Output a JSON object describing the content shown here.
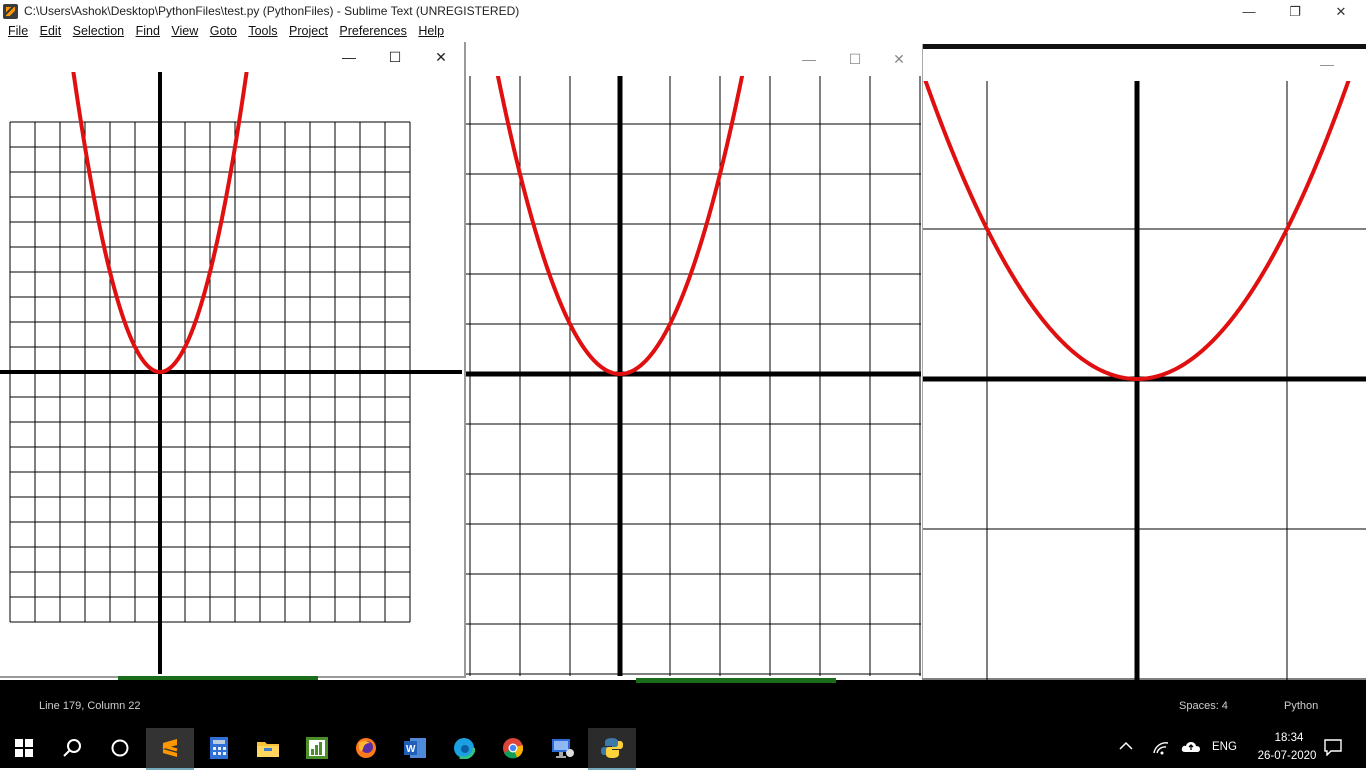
{
  "window": {
    "title": "C:\\Users\\Ashok\\Desktop\\PythonFiles\\test.py (PythonFiles) - Sublime Text (UNREGISTERED)",
    "minimize_glyph": "—",
    "restore_glyph": "❐",
    "close_glyph": "✕"
  },
  "menu": {
    "file": "File",
    "edit": "Edit",
    "selection": "Selection",
    "find": "Find",
    "view": "View",
    "goto": "Goto",
    "tools": "Tools",
    "project": "Project",
    "preferences": "Preferences",
    "help": "Help"
  },
  "plot_windows": {
    "controls": {
      "minimize": "—",
      "maximize": "☐",
      "close": "✕"
    }
  },
  "status": {
    "position": "Line 179, Column 22",
    "spaces": "Spaces: 4",
    "syntax": "Python"
  },
  "taskbar": {
    "apps": [
      "start-icon",
      "search-icon",
      "cortana-icon",
      "sublime-text-icon",
      "calculator-icon",
      "file-explorer-icon",
      "chart-app-icon",
      "firefox-icon",
      "word-icon",
      "edge-icon",
      "chrome-icon",
      "remote-desktop-icon",
      "python-icon"
    ],
    "language": "ENG",
    "time": "18:34",
    "date": "26-07-2020"
  },
  "colors": {
    "curve": "#e01010",
    "axis": "#000000",
    "grid": "#000000",
    "statusbar_bg": "#000000",
    "taskbar_bg": "#000000"
  }
}
